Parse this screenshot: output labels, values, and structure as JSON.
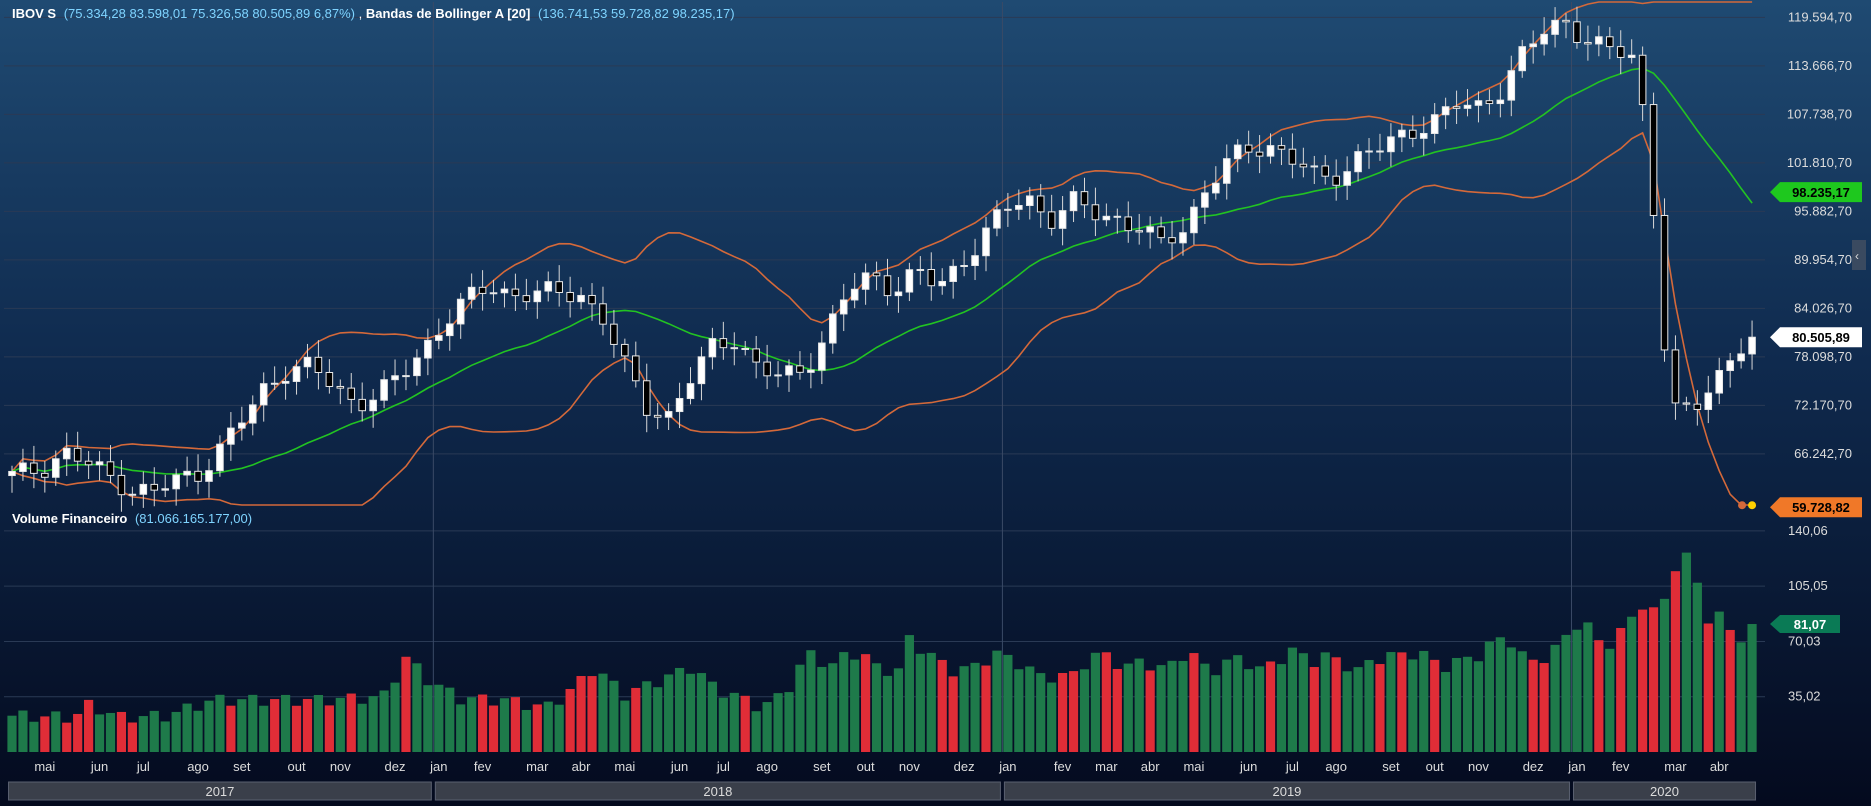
{
  "chart_data": [
    {
      "type": "candlestick",
      "title": "IBOV S",
      "ohlc_label": "(75.334,28  83.598,01  75.326,58  80.505,89  6,87%)",
      "indicator_name": "Bandas de Bollinger A [20]",
      "indicator_values": "(136.741,53  59.728,82  98.235,17)",
      "y_ticks": [
        "119.594,70",
        "113.666,70",
        "107.738,70",
        "101.810,70",
        "95.882,70",
        "89.954,70",
        "84.026,70",
        "78.098,70",
        "72.170,70",
        "66.242,70"
      ],
      "ylim": [
        60000,
        120500
      ],
      "price_badges": [
        {
          "label": "98.235,17",
          "value": 98235.17,
          "color": "#1ec81e",
          "text_color": "#000000"
        },
        {
          "label": "80.505,89",
          "value": 80505.89,
          "color": "#ffffff",
          "text_color": "#000000"
        },
        {
          "label": "59.728,82",
          "value": 59728.82,
          "color": "#f07828",
          "text_color": "#000000"
        }
      ],
      "keypoints": [
        [
          0,
          63500
        ],
        [
          4,
          64500
        ],
        [
          7,
          66500
        ],
        [
          10,
          65000
        ],
        [
          13,
          63500
        ],
        [
          16,
          62000
        ],
        [
          19,
          61500
        ],
        [
          22,
          63000
        ],
        [
          25,
          64000
        ],
        [
          28,
          67000
        ],
        [
          31,
          70500
        ],
        [
          34,
          74500
        ],
        [
          37,
          76800
        ],
        [
          40,
          76800
        ],
        [
          43,
          74500
        ],
        [
          46,
          72500
        ],
        [
          49,
          73500
        ],
        [
          52,
          75500
        ],
        [
          55,
          79000
        ],
        [
          58,
          82500
        ],
        [
          61,
          85000
        ],
        [
          64,
          86800
        ],
        [
          67,
          85800
        ],
        [
          70,
          85800
        ],
        [
          73,
          85800
        ],
        [
          76,
          86000
        ],
        [
          79,
          83000
        ],
        [
          82,
          77000
        ],
        [
          85,
          72000
        ],
        [
          88,
          71000
        ],
        [
          91,
          75500
        ],
        [
          94,
          79500
        ],
        [
          97,
          80500
        ],
        [
          100,
          76500
        ],
        [
          103,
          75500
        ],
        [
          106,
          76500
        ],
        [
          109,
          81000
        ],
        [
          112,
          86000
        ],
        [
          115,
          88000
        ],
        [
          118,
          86500
        ],
        [
          121,
          88500
        ],
        [
          124,
          86500
        ],
        [
          127,
          89500
        ],
        [
          130,
          93000
        ],
        [
          133,
          96000
        ],
        [
          136,
          97500
        ],
        [
          139,
          95000
        ],
        [
          142,
          97000
        ],
        [
          145,
          95500
        ],
        [
          148,
          95000
        ],
        [
          151,
          94000
        ],
        [
          154,
          91500
        ],
        [
          157,
          94000
        ],
        [
          160,
          99000
        ],
        [
          163,
          102000
        ],
        [
          166,
          103500
        ],
        [
          169,
          104000
        ],
        [
          172,
          102000
        ],
        [
          175,
          99500
        ],
        [
          178,
          100500
        ],
        [
          181,
          103500
        ],
        [
          184,
          103500
        ],
        [
          187,
          105500
        ],
        [
          190,
          107000
        ],
        [
          193,
          109000
        ],
        [
          196,
          108000
        ],
        [
          199,
          110500
        ],
        [
          202,
          115000
        ],
        [
          205,
          117500
        ],
        [
          208,
          119000
        ],
        [
          211,
          117000
        ],
        [
          214,
          115500
        ],
        [
          217,
          114500
        ],
        [
          219,
          105500
        ],
        [
          222,
          72000
        ],
        [
          225,
          71000
        ],
        [
          228,
          75000
        ],
        [
          231,
          79500
        ],
        [
          233,
          80505
        ]
      ],
      "volume": {
        "title": "Volume Financeiro",
        "value_label": "(81.066.165.177,00)",
        "y_ticks": [
          "140,06",
          "105,05",
          "70,03",
          "35,02"
        ],
        "ylim": [
          0,
          140
        ],
        "badge": {
          "label": "81,07",
          "value": 81.07,
          "color": "#0a7a55",
          "text_color": "#ffffff"
        },
        "up_color": "#1e7a4a",
        "down_color": "#e02d37",
        "up_weeks": [
          0,
          1,
          3,
          6,
          11,
          13,
          17,
          18,
          19,
          20,
          21,
          23,
          24,
          25,
          26,
          27,
          30,
          31,
          32,
          33,
          35,
          40,
          42,
          45,
          46,
          47,
          48,
          49,
          50,
          52,
          54,
          55,
          56,
          57,
          58,
          59,
          60,
          63,
          67,
          69,
          71,
          77,
          78,
          79,
          82,
          83,
          84,
          85,
          86,
          87,
          88,
          89,
          91,
          92,
          93,
          96,
          98,
          99,
          100,
          101,
          102,
          103,
          105,
          106,
          107,
          108,
          109,
          112,
          113,
          114,
          115,
          116,
          118,
          119,
          123,
          124,
          125,
          127,
          129,
          130,
          132,
          133,
          135,
          139,
          140,
          144,
          145,
          146,
          148,
          150,
          152,
          154,
          155,
          156,
          157,
          158,
          160,
          161,
          162,
          164,
          165,
          167,
          170,
          172,
          174,
          175,
          176,
          178,
          179,
          181,
          182,
          183,
          185,
          187,
          188,
          189,
          190,
          191,
          193,
          194,
          195,
          199,
          201,
          202,
          203,
          204,
          206,
          209,
          210,
          213,
          216,
          218,
          221,
          223,
          224,
          225
        ],
        "values_src": [
          [
            0,
            23
          ],
          [
            8,
            22
          ],
          [
            10,
            30
          ],
          [
            14,
            22
          ],
          [
            20,
            23
          ],
          [
            26,
            33
          ],
          [
            33,
            33
          ],
          [
            40,
            33
          ],
          [
            48,
            35
          ],
          [
            51,
            60
          ],
          [
            54,
            45
          ],
          [
            58,
            34
          ],
          [
            64,
            33
          ],
          [
            69,
            28
          ],
          [
            72,
            38
          ],
          [
            75,
            52
          ],
          [
            77,
            47
          ],
          [
            79,
            36
          ],
          [
            82,
            42
          ],
          [
            85,
            48
          ],
          [
            88,
            54
          ],
          [
            91,
            40
          ],
          [
            94,
            35
          ],
          [
            97,
            28
          ],
          [
            100,
            38
          ],
          [
            103,
            63
          ],
          [
            106,
            54
          ],
          [
            108,
            63
          ],
          [
            110,
            62
          ],
          [
            112,
            53
          ],
          [
            115,
            51
          ],
          [
            116,
            72
          ],
          [
            118,
            64
          ],
          [
            120,
            57
          ],
          [
            122,
            51
          ],
          [
            125,
            55
          ],
          [
            127,
            63
          ],
          [
            130,
            57
          ],
          [
            133,
            48
          ],
          [
            137,
            48
          ],
          [
            139,
            58
          ],
          [
            141,
            63
          ],
          [
            144,
            53
          ],
          [
            146,
            58
          ],
          [
            149,
            52
          ],
          [
            152,
            64
          ],
          [
            155,
            51
          ],
          [
            159,
            61
          ],
          [
            161,
            51
          ],
          [
            165,
            62
          ],
          [
            166,
            65
          ],
          [
            168,
            57
          ],
          [
            170,
            61
          ],
          [
            172,
            57
          ],
          [
            174,
            51
          ],
          [
            176,
            59
          ],
          [
            180,
            62
          ],
          [
            182,
            63
          ],
          [
            185,
            54
          ],
          [
            190,
            62
          ],
          [
            192,
            72
          ],
          [
            194,
            70
          ],
          [
            196,
            56
          ],
          [
            199,
            62
          ],
          [
            203,
            85
          ],
          [
            205,
            70
          ],
          [
            207,
            69
          ],
          [
            211,
            95
          ],
          [
            213,
            85
          ],
          [
            215,
            118
          ],
          [
            217,
            125
          ],
          [
            219,
            85
          ],
          [
            221,
            86
          ],
          [
            223,
            70
          ],
          [
            225,
            81
          ]
        ]
      }
    }
  ],
  "x_months": [
    {
      "label": "mai",
      "week": 3
    },
    {
      "label": "jun",
      "week": 8
    },
    {
      "label": "jul",
      "week": 12
    },
    {
      "label": "ago",
      "week": 17
    },
    {
      "label": "set",
      "week": 21
    },
    {
      "label": "out",
      "week": 26
    },
    {
      "label": "nov",
      "week": 30
    },
    {
      "label": "dez",
      "week": 35
    },
    {
      "label": "jan",
      "week": 39
    },
    {
      "label": "fev",
      "week": 43
    },
    {
      "label": "mar",
      "week": 48
    },
    {
      "label": "abr",
      "week": 52
    },
    {
      "label": "mai",
      "week": 56
    },
    {
      "label": "jun",
      "week": 61
    },
    {
      "label": "jul",
      "week": 65
    },
    {
      "label": "ago",
      "week": 69
    },
    {
      "label": "set",
      "week": 74
    },
    {
      "label": "out",
      "week": 78
    },
    {
      "label": "nov",
      "week": 82
    },
    {
      "label": "dez",
      "week": 87
    },
    {
      "label": "jan",
      "week": 91
    },
    {
      "label": "fev",
      "week": 96
    },
    {
      "label": "mar",
      "week": 100
    },
    {
      "label": "abr",
      "week": 104
    },
    {
      "label": "mai",
      "week": 108
    },
    {
      "label": "jun",
      "week": 113
    },
    {
      "label": "jul",
      "week": 117
    },
    {
      "label": "ago",
      "week": 121
    },
    {
      "label": "set",
      "week": 126
    },
    {
      "label": "out",
      "week": 130
    },
    {
      "label": "nov",
      "week": 134
    },
    {
      "label": "dez",
      "week": 139
    },
    {
      "label": "jan",
      "week": 143
    },
    {
      "label": "fev",
      "week": 147
    },
    {
      "label": "mar",
      "week": 152
    },
    {
      "label": "abr",
      "week": 156
    }
  ],
  "x_years": [
    {
      "label": "2017",
      "from": 0,
      "to": 39
    },
    {
      "label": "2018",
      "from": 39,
      "to": 91
    },
    {
      "label": "2019",
      "from": 91,
      "to": 143
    },
    {
      "label": "2020",
      "from": 143,
      "to": 160
    }
  ],
  "colors": {
    "background_top": "#1f4a72",
    "background_bottom": "#040a1e",
    "candle_up": "#ffffff",
    "candle_down": "#000000",
    "band_outer": "#d4693a",
    "band_mid": "#22c322",
    "grid": "#2a3a55",
    "axis_text": "#dcdcdc",
    "accent_text": "#7fd4ff"
  }
}
